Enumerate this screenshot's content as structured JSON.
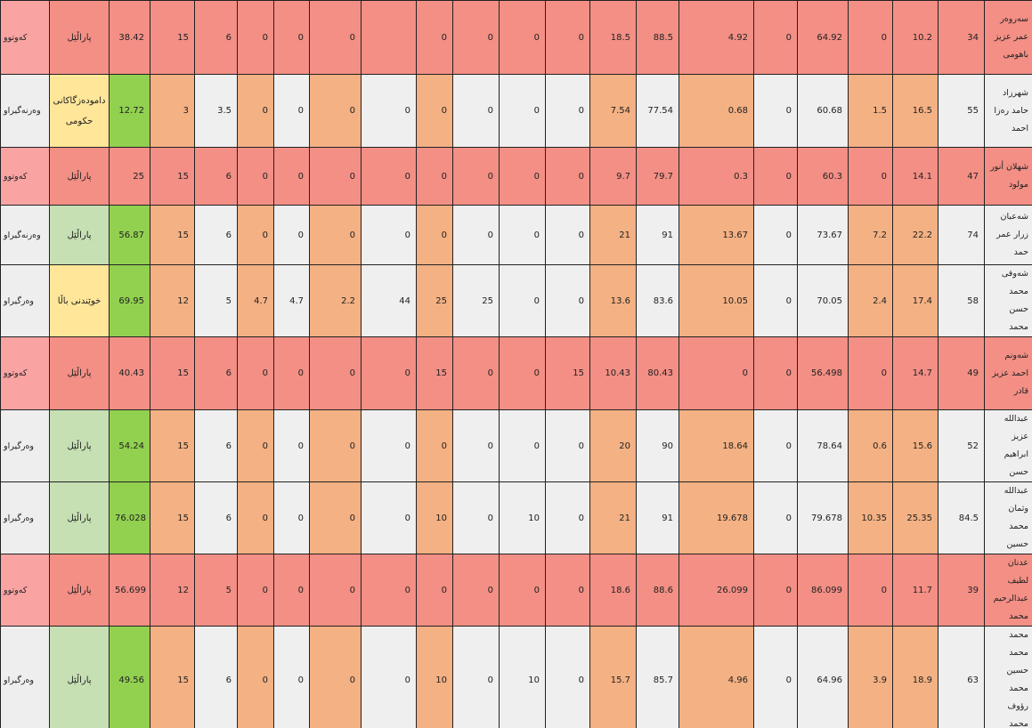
{
  "table": {
    "rows": [
      {
        "status": "کەوتوو",
        "category": "پاراڵێل",
        "color": "#f38f85",
        "status_color": "#f9a3a3",
        "category_color": null,
        "values": [
          38.42,
          15,
          6,
          0,
          0,
          0,
          null,
          0,
          0,
          0,
          0,
          18.5,
          88.5,
          4.92,
          0,
          64.92,
          0,
          10.2,
          34
        ],
        "name": "سەروەر عمر عزیز باهومی"
      },
      {
        "status": "وەرنەگیراو",
        "category": "دامودەزگاکانی حکومی",
        "color": null,
        "status_color": null,
        "category_color": "#ffe699",
        "values": [
          12.72,
          3,
          3.5,
          0,
          0,
          0,
          0,
          0,
          0,
          0,
          0,
          7.54,
          77.54,
          0.68,
          0,
          60.68,
          1.5,
          16.5,
          55
        ],
        "name": "شهرزاد حامد رەزا احمد"
      },
      {
        "status": "کەوتوو",
        "category": "پاراڵێل",
        "color": "#f38f85",
        "status_color": "#f9a3a3",
        "category_color": null,
        "values": [
          25,
          15,
          6,
          0,
          0,
          0,
          0,
          0,
          0,
          0,
          0,
          9.7,
          79.7,
          0.3,
          0,
          60.3,
          0,
          14.1,
          47
        ],
        "name": "شهلان أنور مولود"
      },
      {
        "status": "وەرنەگیراو",
        "category": "پاراڵێل",
        "color": null,
        "status_color": null,
        "category_color": "#c6e0b4",
        "values": [
          56.87,
          15,
          6,
          0,
          0,
          0,
          0,
          0,
          0,
          0,
          0,
          21,
          91,
          13.67,
          0,
          73.67,
          7.2,
          22.2,
          74
        ],
        "name": "شەعبان زرار عمر حمد"
      },
      {
        "status": "وەرگیراو",
        "category": "خوێندنی باڵا",
        "color": null,
        "status_color": null,
        "category_color": "#ffe699",
        "values": [
          69.95,
          12,
          5,
          4.7,
          4.7,
          2.2,
          44,
          25,
          25,
          0,
          0,
          13.6,
          83.6,
          10.05,
          0,
          70.05,
          2.4,
          17.4,
          58
        ],
        "name": "شەوقی محمد حسن محمد"
      },
      {
        "status": "کەوتوو",
        "category": "پاراڵێل",
        "color": "#f38f85",
        "status_color": "#f9a3a3",
        "category_color": null,
        "values": [
          40.43,
          15,
          6,
          0,
          0,
          0,
          0,
          15,
          0,
          0,
          15,
          10.43,
          80.43,
          0,
          0,
          56.498,
          0,
          14.7,
          49
        ],
        "name": "شەونم احمد عزیز قادر"
      },
      {
        "status": "وەرگیراو",
        "category": "پاراڵێل",
        "color": null,
        "status_color": null,
        "category_color": "#c6e0b4",
        "values": [
          54.24,
          15,
          6,
          0,
          0,
          0,
          0,
          0,
          0,
          0,
          0,
          20,
          90,
          18.64,
          0,
          78.64,
          0.6,
          15.6,
          52
        ],
        "name": "عبدالله عزیز ابراهیم حسن"
      },
      {
        "status": "وەرگیراو",
        "category": "پاراڵێل",
        "color": null,
        "status_color": null,
        "category_color": "#c6e0b4",
        "values": [
          76.028,
          15,
          6,
          0,
          0,
          0,
          0,
          10,
          0,
          10,
          0,
          21,
          91,
          19.678,
          0,
          79.678,
          10.35,
          25.35,
          84.5
        ],
        "name": "عبدالله وثمان محمد حسین"
      },
      {
        "status": "کەوتوو",
        "category": "پاراڵێل",
        "color": "#f38f85",
        "status_color": "#f9a3a3",
        "category_color": null,
        "values": [
          56.699,
          12,
          5,
          0,
          0,
          0,
          0,
          0,
          0,
          0,
          0,
          18.6,
          88.6,
          26.099,
          0,
          86.099,
          0,
          11.7,
          39
        ],
        "name": "عدنان لطیف عبدالرحیم محمد"
      },
      {
        "status": "وەرگیراو",
        "category": "پاراڵێل",
        "color": null,
        "status_color": null,
        "category_color": "#c6e0b4",
        "values": [
          49.56,
          15,
          6,
          0,
          0,
          0,
          0,
          10,
          0,
          10,
          0,
          15.7,
          85.7,
          4.96,
          0,
          64.96,
          3.9,
          18.9,
          63
        ],
        "name": "محمد محمد حسین محمد رؤوف محمد"
      }
    ]
  }
}
